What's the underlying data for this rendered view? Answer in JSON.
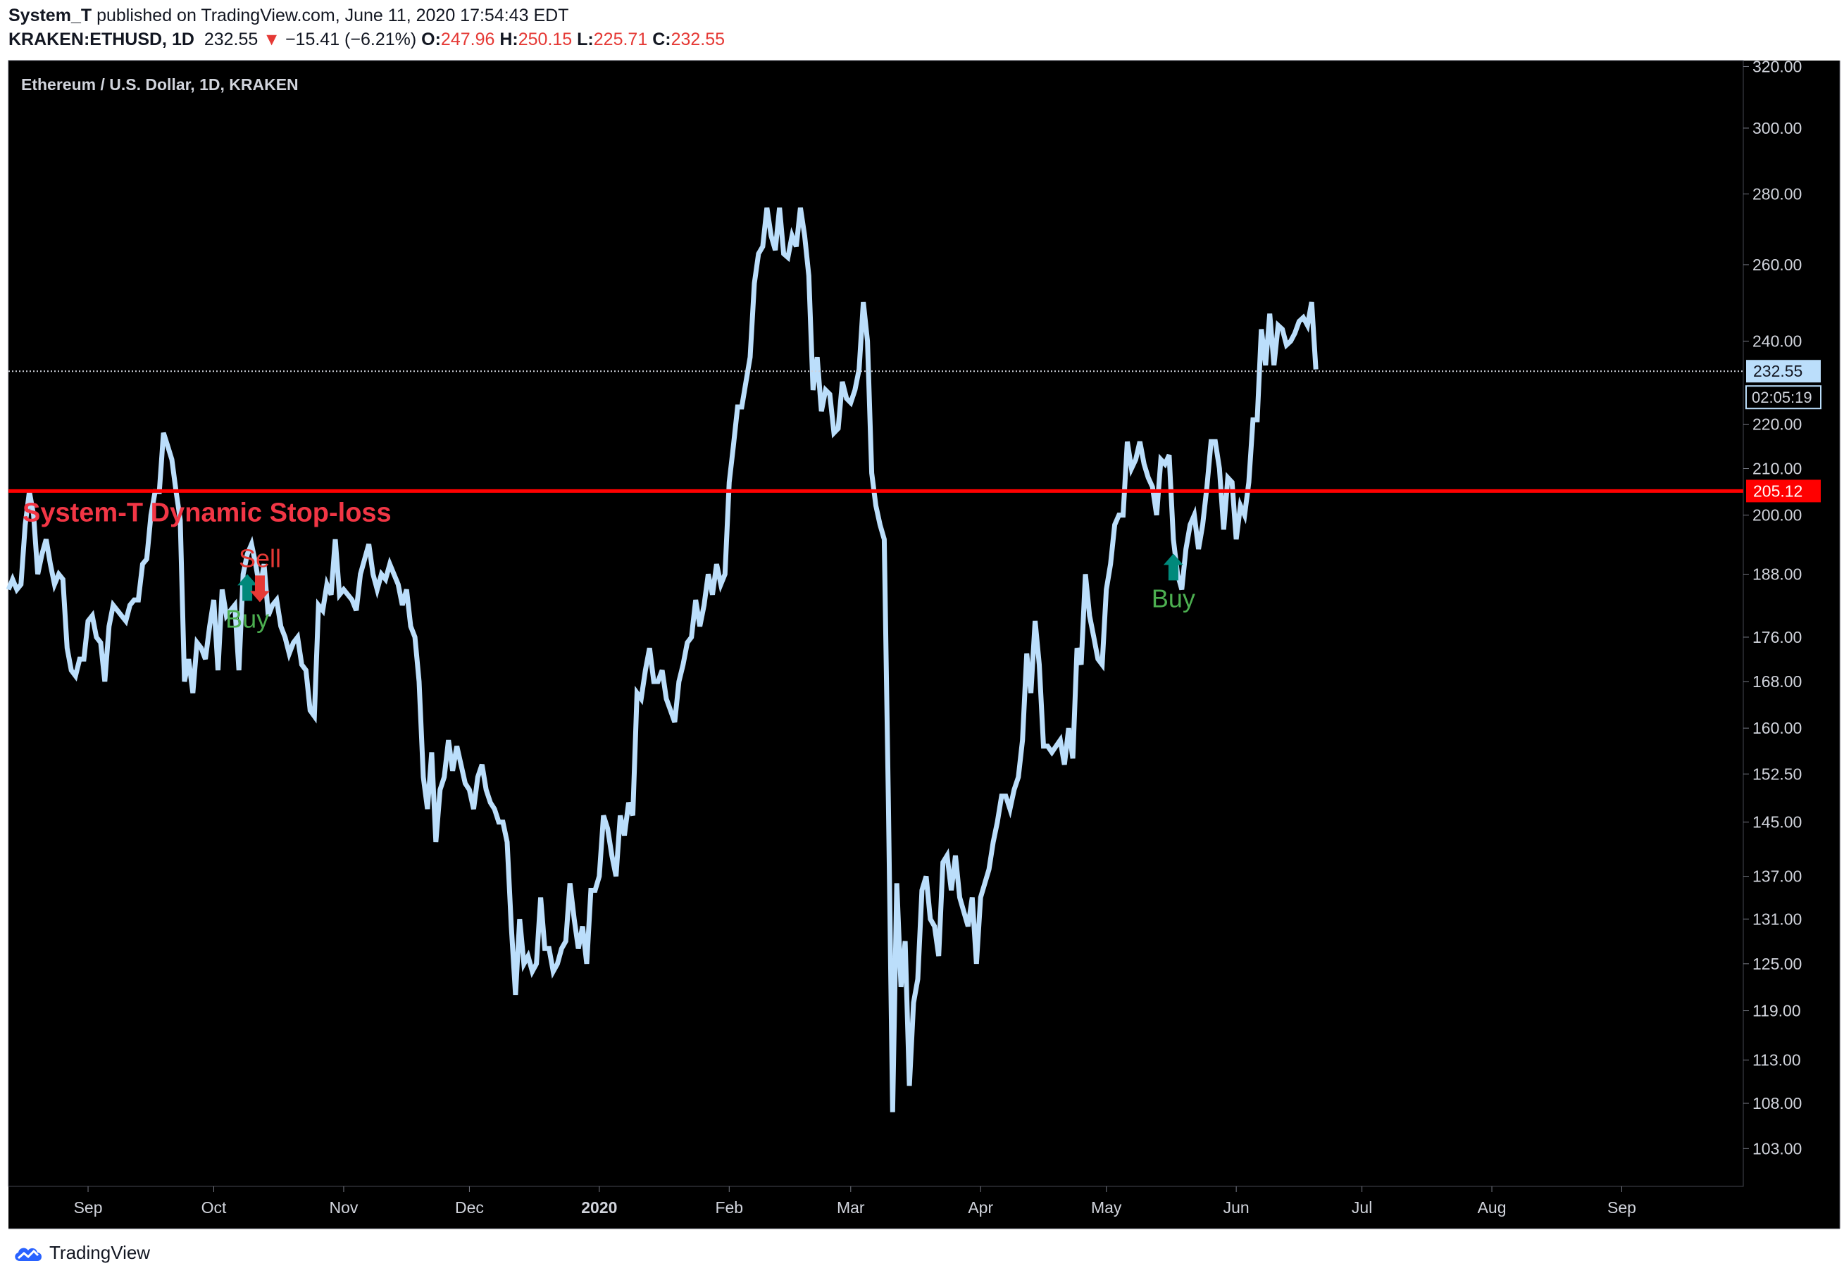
{
  "header": {
    "author": "System_T",
    "published": "published on TradingView.com, June 11, 2020 17:54:43 EDT",
    "symbol": "KRAKEN:ETHUSD, 1D",
    "last": "232.55",
    "change": "−15.41 (−6.21%)",
    "o_label": "O:",
    "o_value": "247.96",
    "h_label": "H:",
    "h_value": "250.15",
    "l_label": "L:",
    "l_value": "225.71",
    "c_label": "C:",
    "c_value": "232.55"
  },
  "footer": {
    "brand": "TradingView"
  },
  "colors": {
    "background": "#000000",
    "line": "#bbdefb",
    "stop": "#ff0000",
    "buy": "#00897b",
    "sell": "#e53935",
    "buy_text": "#4caf50"
  },
  "chart_data": {
    "type": "line",
    "title": "Ethereum / U.S. Dollar, 1D, KRAKEN",
    "y_scale": "log",
    "ylim": [
      99,
      322
    ],
    "y_ticks": [
      "103.00",
      "108.00",
      "113.00",
      "119.00",
      "125.00",
      "131.00",
      "137.00",
      "145.00",
      "152.50",
      "160.00",
      "168.00",
      "176.00",
      "188.00",
      "200.00",
      "210.00",
      "220.00",
      "240.00",
      "260.00",
      "280.00",
      "300.00",
      "320.00"
    ],
    "x_ticks": [
      "Sep",
      "Oct",
      "Nov",
      "Dec",
      "2020",
      "Feb",
      "Mar",
      "Apr",
      "May",
      "Jun",
      "Jul",
      "Aug",
      "Sep"
    ],
    "x_range": [
      "2019-08-13",
      "2020-09-30"
    ],
    "grid": false,
    "series": [
      {
        "start_date": "2019-08-13",
        "interval": "1D",
        "values": [
          185,
          187,
          185,
          186,
          198,
          205,
          200,
          188,
          192,
          195,
          190,
          186,
          188,
          187,
          174,
          170,
          169,
          172,
          172,
          179,
          180,
          176,
          175,
          168,
          178,
          182,
          181,
          180,
          179,
          182,
          183,
          183,
          190,
          191,
          200,
          205,
          205,
          218,
          215,
          212,
          205,
          199,
          168,
          172,
          166,
          175,
          174,
          172,
          178,
          183,
          170,
          185,
          180,
          181,
          182,
          170,
          188,
          192,
          194,
          190,
          185,
          190,
          180,
          182,
          183,
          178,
          176,
          173,
          175,
          176,
          171,
          170,
          163,
          162,
          182,
          181,
          186,
          184,
          195,
          184,
          185,
          184,
          183,
          181,
          188,
          191,
          194,
          188,
          185,
          188,
          187,
          190,
          188,
          186,
          182,
          185,
          178,
          176,
          168,
          152,
          147,
          156,
          142,
          150,
          152,
          158,
          153,
          157,
          154,
          151,
          150,
          147,
          152,
          154,
          150,
          148,
          147,
          145,
          145,
          142,
          130,
          121,
          131,
          125,
          126,
          124,
          125,
          134,
          127,
          127,
          124,
          125,
          127,
          128,
          136,
          131,
          127,
          130,
          125,
          135,
          135,
          137,
          146,
          144,
          140,
          137,
          146,
          143,
          148,
          146,
          166,
          165,
          170,
          174,
          168,
          168,
          170,
          165,
          163,
          161,
          168,
          171,
          175,
          176,
          183,
          178,
          182,
          188,
          184,
          190,
          186,
          188,
          207,
          215,
          224,
          224,
          230,
          236,
          255,
          263,
          265,
          276,
          268,
          264,
          276,
          263,
          262,
          268,
          265,
          276,
          268,
          257,
          228,
          236,
          223,
          228,
          227,
          218,
          219,
          230,
          226,
          225,
          228,
          233,
          250,
          240,
          209,
          202,
          198,
          195,
          148,
          107,
          136,
          122,
          128,
          110,
          120,
          123,
          135,
          137,
          131,
          130,
          126,
          139,
          140,
          135,
          140,
          134,
          132,
          130,
          134,
          125,
          134,
          136,
          138,
          142,
          145,
          149,
          149,
          147,
          150,
          152,
          158,
          173,
          166,
          179,
          171,
          157,
          157,
          156,
          157,
          158,
          154,
          160,
          155,
          174,
          171,
          188,
          180,
          176,
          172,
          171,
          185,
          190,
          198,
          200,
          200,
          216,
          210,
          212,
          216,
          211,
          208,
          206,
          200,
          212,
          211,
          213,
          195,
          188,
          185,
          193,
          198,
          200,
          193,
          198,
          206,
          216,
          216,
          210,
          197,
          208,
          207,
          195,
          202,
          200,
          207,
          221,
          221,
          243,
          234,
          247,
          234,
          244,
          243,
          239,
          240,
          242,
          245,
          246,
          244,
          250,
          233
        ]
      }
    ],
    "last_price_label": "232.55",
    "countdown_label": "02:05:19",
    "stop_price": 205.12,
    "stop_price_label": "205.12",
    "stop_label": "System-T Dynamic Stop-loss",
    "markers": [
      {
        "type": "buy",
        "date": "2019-10-09",
        "price": 185,
        "text": "Buy"
      },
      {
        "type": "sell",
        "date": "2019-10-12",
        "price": 185,
        "text": "Sell"
      },
      {
        "type": "buy",
        "date": "2020-05-17",
        "price": 189,
        "text": "Buy"
      }
    ]
  }
}
